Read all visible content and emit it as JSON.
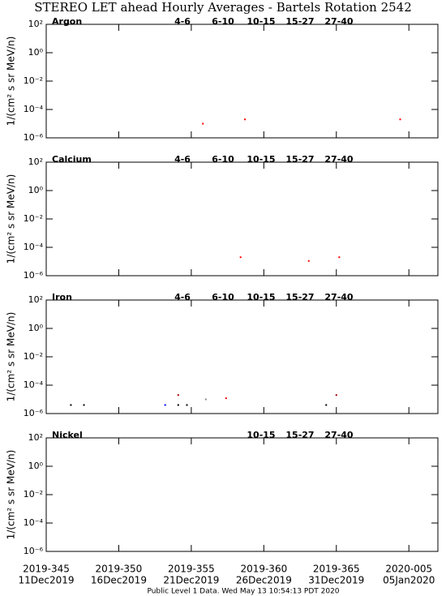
{
  "title": "STEREO LET ahead Hourly Averages - Bartels Rotation 2542",
  "footer": "Public Level 1 Data. Wed May 13 10:54:13 PDT 2020",
  "x_axis": {
    "xlim": [
      345,
      372
    ],
    "xticks": [
      {
        "value": 345,
        "label": "2019-345"
      },
      {
        "value": 350,
        "label": "2019-350"
      },
      {
        "value": 355,
        "label": "2019-355"
      },
      {
        "value": 360,
        "label": "2019-360"
      },
      {
        "value": 365,
        "label": "2019-365"
      },
      {
        "value": 370,
        "label": "2020-005"
      }
    ],
    "xtick_dates": [
      "11Dec2019",
      "16Dec2019",
      "21Dec2019",
      "26Dec2019",
      "31Dec2019",
      "05Jan2020"
    ]
  },
  "chart_data": [
    {
      "type": "scatter",
      "title": "Argon",
      "ylabel": "1/(cm² s sr MeV/n)",
      "log_y": true,
      "ylim": [
        1e-06,
        100
      ],
      "yticks": [
        {
          "value": 100,
          "label": "10²"
        },
        {
          "value": 1,
          "label": "10⁰"
        },
        {
          "value": 0.01,
          "label": "10⁻²"
        },
        {
          "value": 0.0001,
          "label": "10⁻⁴"
        },
        {
          "value": 1e-06,
          "label": "10⁻⁶"
        }
      ],
      "series": [
        {
          "name": "4-6",
          "color": "#a00000",
          "x": [],
          "values": []
        },
        {
          "name": "6-10",
          "color": "#ff0000",
          "x": [
            355.8,
            358.7,
            369.4
          ],
          "values": [
            1e-05,
            2e-05,
            2e-05
          ]
        },
        {
          "name": "10-15",
          "color": "#888888",
          "x": [],
          "values": []
        },
        {
          "name": "15-27",
          "color": "#0000ff",
          "x": [],
          "values": []
        },
        {
          "name": "27-40",
          "color": "#000000",
          "x": [],
          "values": []
        }
      ]
    },
    {
      "type": "scatter",
      "title": "Calcium",
      "ylabel": "1/(cm² s sr MeV/n)",
      "log_y": true,
      "ylim": [
        1e-06,
        100
      ],
      "yticks": [
        {
          "value": 100,
          "label": "10²"
        },
        {
          "value": 1,
          "label": "10⁰"
        },
        {
          "value": 0.01,
          "label": "10⁻²"
        },
        {
          "value": 0.0001,
          "label": "10⁻⁴"
        },
        {
          "value": 1e-06,
          "label": "10⁻⁶"
        }
      ],
      "series": [
        {
          "name": "4-6",
          "color": "#a00000",
          "x": [],
          "values": []
        },
        {
          "name": "6-10",
          "color": "#ff0000",
          "x": [
            358.4,
            363.1,
            365.2
          ],
          "values": [
            2e-05,
            1.1e-05,
            2e-05
          ]
        },
        {
          "name": "10-15",
          "color": "#888888",
          "x": [],
          "values": []
        },
        {
          "name": "15-27",
          "color": "#0000ff",
          "x": [],
          "values": []
        },
        {
          "name": "27-40",
          "color": "#000000",
          "x": [],
          "values": []
        }
      ]
    },
    {
      "type": "scatter",
      "title": "Iron",
      "ylabel": "1/(cm² s sr MeV/n)",
      "log_y": true,
      "ylim": [
        1e-06,
        100
      ],
      "yticks": [
        {
          "value": 100,
          "label": "10²"
        },
        {
          "value": 1,
          "label": "10⁰"
        },
        {
          "value": 0.01,
          "label": "10⁻²"
        },
        {
          "value": 0.0001,
          "label": "10⁻⁴"
        },
        {
          "value": 1e-06,
          "label": "10⁻⁶"
        }
      ],
      "series": [
        {
          "name": "4-6",
          "color": "#a00000",
          "x": [
            354.1,
            365.0
          ],
          "values": [
            2e-05,
            2e-05
          ]
        },
        {
          "name": "6-10",
          "color": "#ff0000",
          "x": [
            357.4
          ],
          "values": [
            1.2e-05
          ]
        },
        {
          "name": "10-15",
          "color": "#888888",
          "x": [
            356.0
          ],
          "values": [
            1e-05
          ]
        },
        {
          "name": "15-27",
          "color": "#0000ff",
          "x": [
            353.2
          ],
          "values": [
            4e-06
          ]
        },
        {
          "name": "27-40",
          "color": "#000000",
          "x": [
            346.7,
            347.6,
            354.1,
            354.7,
            364.3
          ],
          "values": [
            4e-06,
            4e-06,
            4e-06,
            4e-06,
            4e-06
          ]
        }
      ]
    },
    {
      "type": "scatter",
      "title": "Nickel",
      "ylabel": "1/(cm² s sr MeV/n)",
      "log_y": true,
      "ylim": [
        1e-06,
        100
      ],
      "yticks": [
        {
          "value": 100,
          "label": "10²"
        },
        {
          "value": 1,
          "label": "10⁰"
        },
        {
          "value": 0.01,
          "label": "10⁻²"
        },
        {
          "value": 0.0001,
          "label": "10⁻⁴"
        },
        {
          "value": 1e-06,
          "label": "10⁻⁶"
        }
      ],
      "series": [
        {
          "name": "10-15",
          "color": "#888888",
          "x": [],
          "values": []
        },
        {
          "name": "15-27",
          "color": "#0000ff",
          "x": [],
          "values": []
        },
        {
          "name": "27-40",
          "color": "#000000",
          "x": [],
          "values": []
        }
      ]
    }
  ]
}
